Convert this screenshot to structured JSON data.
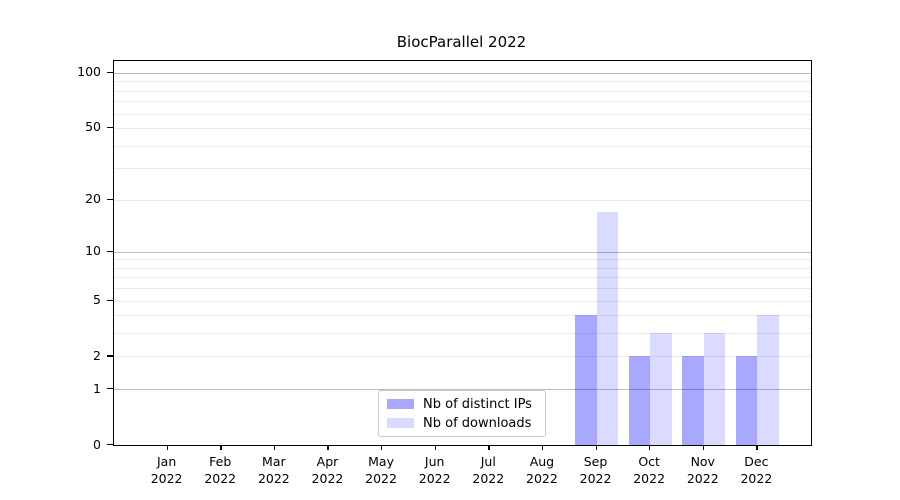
{
  "chart_data": {
    "type": "bar",
    "title": "BiocParallel 2022",
    "categories": [
      "Jan 2022",
      "Feb 2022",
      "Mar 2022",
      "Apr 2022",
      "May 2022",
      "Jun 2022",
      "Jul 2022",
      "Aug 2022",
      "Sep 2022",
      "Oct 2022",
      "Nov 2022",
      "Dec 2022"
    ],
    "series": [
      {
        "name": "Nb of distinct IPs",
        "color": "rgba(0,0,255,0.34)",
        "values": [
          0,
          0,
          0,
          0,
          0,
          0,
          0,
          0,
          4,
          2,
          2,
          2
        ]
      },
      {
        "name": "Nb of downloads",
        "color": "rgba(0,0,255,0.14)",
        "values": [
          0,
          0,
          0,
          0,
          0,
          0,
          0,
          0,
          17,
          3,
          3,
          4
        ]
      }
    ],
    "yscale": "log1p",
    "ylim": [
      0,
      116
    ],
    "y_ticks": [
      0,
      1,
      2,
      5,
      10,
      20,
      50,
      100
    ],
    "y_minor_grid": [
      2,
      3,
      4,
      5,
      6,
      7,
      8,
      9,
      20,
      30,
      40,
      50,
      60,
      70,
      80,
      90
    ],
    "y_major_grid": [
      1,
      10,
      100
    ],
    "xlabel": "",
    "ylabel": "",
    "grid": true,
    "legend_position": "lower-center-inside",
    "colors": {
      "grid_minor": "#ebebeb",
      "grid_major": "#bdbdbd",
      "axis": "#000000",
      "background": "#ffffff"
    }
  }
}
